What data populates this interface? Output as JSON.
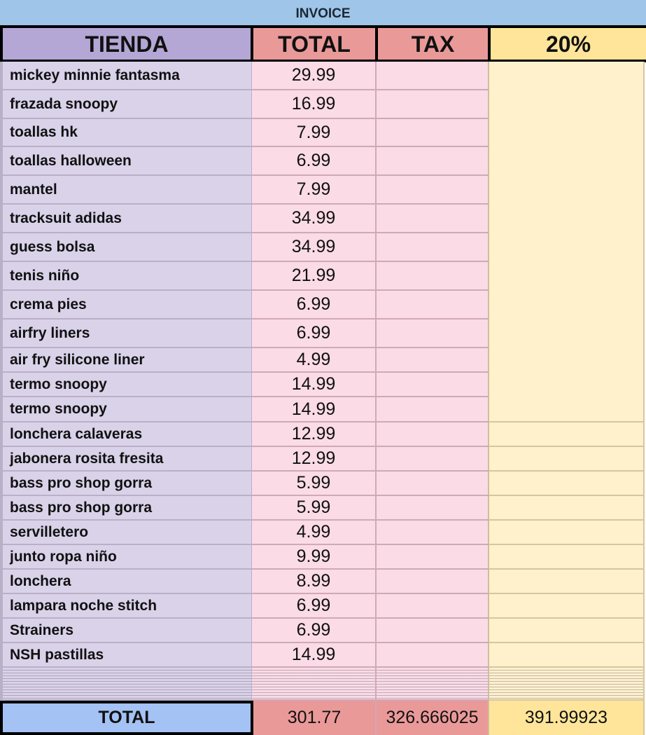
{
  "title": "INVOICE",
  "headers": {
    "tienda": "TIENDA",
    "total": "TOTAL",
    "tax": "TAX",
    "pct": "20%"
  },
  "rows": [
    {
      "tienda": "mickey minnie fantasma",
      "total": "29.99"
    },
    {
      "tienda": "frazada snoopy",
      "total": "16.99"
    },
    {
      "tienda": "toallas hk",
      "total": "7.99"
    },
    {
      "tienda": "toallas halloween",
      "total": "6.99"
    },
    {
      "tienda": "mantel",
      "total": "7.99"
    },
    {
      "tienda": "tracksuit adidas",
      "total": "34.99"
    },
    {
      "tienda": "guess bolsa",
      "total": "34.99"
    },
    {
      "tienda": "tenis niño",
      "total": "21.99"
    },
    {
      "tienda": "crema pies",
      "total": "6.99"
    },
    {
      "tienda": "airfry liners",
      "total": "6.99"
    },
    {
      "tienda": "air fry silicone liner",
      "total": "4.99"
    },
    {
      "tienda": "termo snoopy",
      "total": "14.99"
    },
    {
      "tienda": "termo snoopy",
      "total": "14.99"
    },
    {
      "tienda": "lonchera calaveras",
      "total": "12.99"
    },
    {
      "tienda": "jabonera rosita fresita",
      "total": "12.99"
    },
    {
      "tienda": "bass pro shop gorra",
      "total": "5.99"
    },
    {
      "tienda": "bass pro shop gorra",
      "total": "5.99"
    },
    {
      "tienda": "servilletero",
      "total": "4.99"
    },
    {
      "tienda": "junto ropa niño",
      "total": "9.99"
    },
    {
      "tienda": "lonchera",
      "total": "8.99"
    },
    {
      "tienda": "lampara noche stitch",
      "total": "6.99"
    },
    {
      "tienda": "Strainers",
      "total": "6.99"
    },
    {
      "tienda": "NSH pastillas",
      "total": "14.99"
    }
  ],
  "footer": {
    "label": "TOTAL",
    "total": "301.77",
    "tax": "326.666025",
    "pct": "391.99923"
  },
  "colors": {
    "title_bg": "#9fc5e8",
    "tienda_header": "#b4a7d6",
    "total_header": "#ea9999",
    "pct_header": "#ffe599",
    "footer_label": "#a4c2f4"
  }
}
